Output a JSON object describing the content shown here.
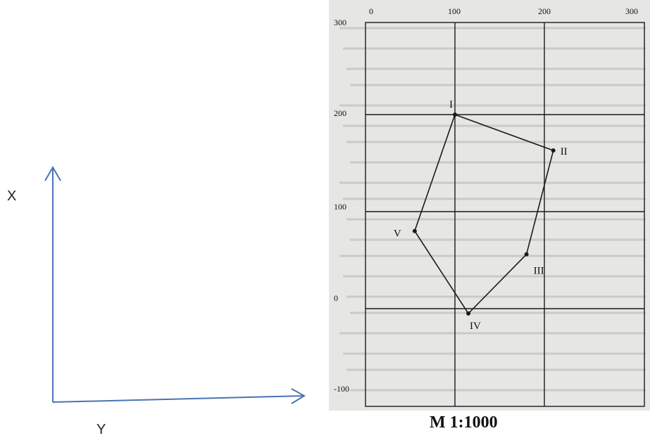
{
  "axes_sketch": {
    "x_label": "X",
    "y_label": "Y",
    "color": "#4a73b5"
  },
  "plan": {
    "top_ticks": [
      "0",
      "100",
      "200",
      "300"
    ],
    "left_ticks": [
      "300",
      "200",
      "100",
      "0",
      "-100"
    ],
    "points": [
      {
        "label": "I",
        "y": 100,
        "x": 200
      },
      {
        "label": "II",
        "y": 210,
        "x": 163
      },
      {
        "label": "III",
        "y": 180,
        "x": 56
      },
      {
        "label": "IV",
        "y": 115,
        "x": -5
      },
      {
        "label": "V",
        "y": 55,
        "x": 80
      }
    ],
    "scale": "M 1:1000"
  }
}
